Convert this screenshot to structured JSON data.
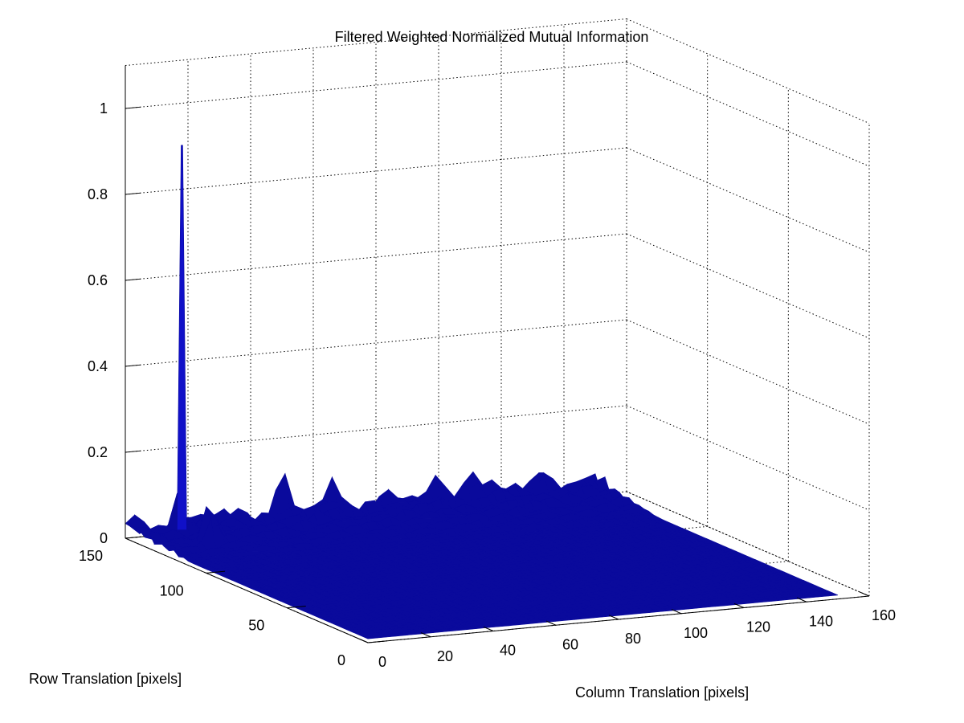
{
  "figure": {
    "background": "#ffffff",
    "surface_color": "#0a0a9c",
    "surface_edge_color": "#1010c8"
  },
  "chart_data": {
    "type": "surface",
    "title": "Filtered Weighted Normalized Mutual Information",
    "xlabel": "Column Translation [pixels]",
    "ylabel": "Row Translation [pixels]",
    "zlabel": "",
    "xlim": [
      0,
      160
    ],
    "ylim": [
      0,
      150
    ],
    "zlim": [
      0,
      1.1
    ],
    "x_ticks": [
      0,
      20,
      40,
      60,
      80,
      100,
      120,
      140,
      160
    ],
    "y_ticks": [
      0,
      50,
      100,
      150
    ],
    "z_ticks": [
      0,
      0.2,
      0.4,
      0.6,
      0.8,
      1
    ],
    "x_tick_labels": [
      "0",
      "20",
      "40",
      "60",
      "80",
      "100",
      "120",
      "140",
      "160"
    ],
    "y_tick_labels": [
      "0",
      "50",
      "100",
      "150"
    ],
    "z_tick_labels": [
      "0",
      "0.2",
      "0.4",
      "0.6",
      "0.8",
      "1"
    ],
    "grid": true,
    "data_extent": {
      "x": [
        0,
        150
      ],
      "y": [
        0,
        150
      ]
    },
    "background_level": 0.03,
    "peak": {
      "x": 16,
      "y": 146,
      "z": 0.91
    },
    "secondary_bumps": [
      {
        "x": 16,
        "y": 128,
        "z": 0.12
      },
      {
        "x": 50,
        "y": 150,
        "z": 0.08
      },
      {
        "x": 66,
        "y": 150,
        "z": 0.07
      },
      {
        "x": 100,
        "y": 150,
        "z": 0.06
      },
      {
        "x": 110,
        "y": 150,
        "z": 0.07
      },
      {
        "x": 133,
        "y": 148,
        "z": 0.07
      }
    ]
  }
}
